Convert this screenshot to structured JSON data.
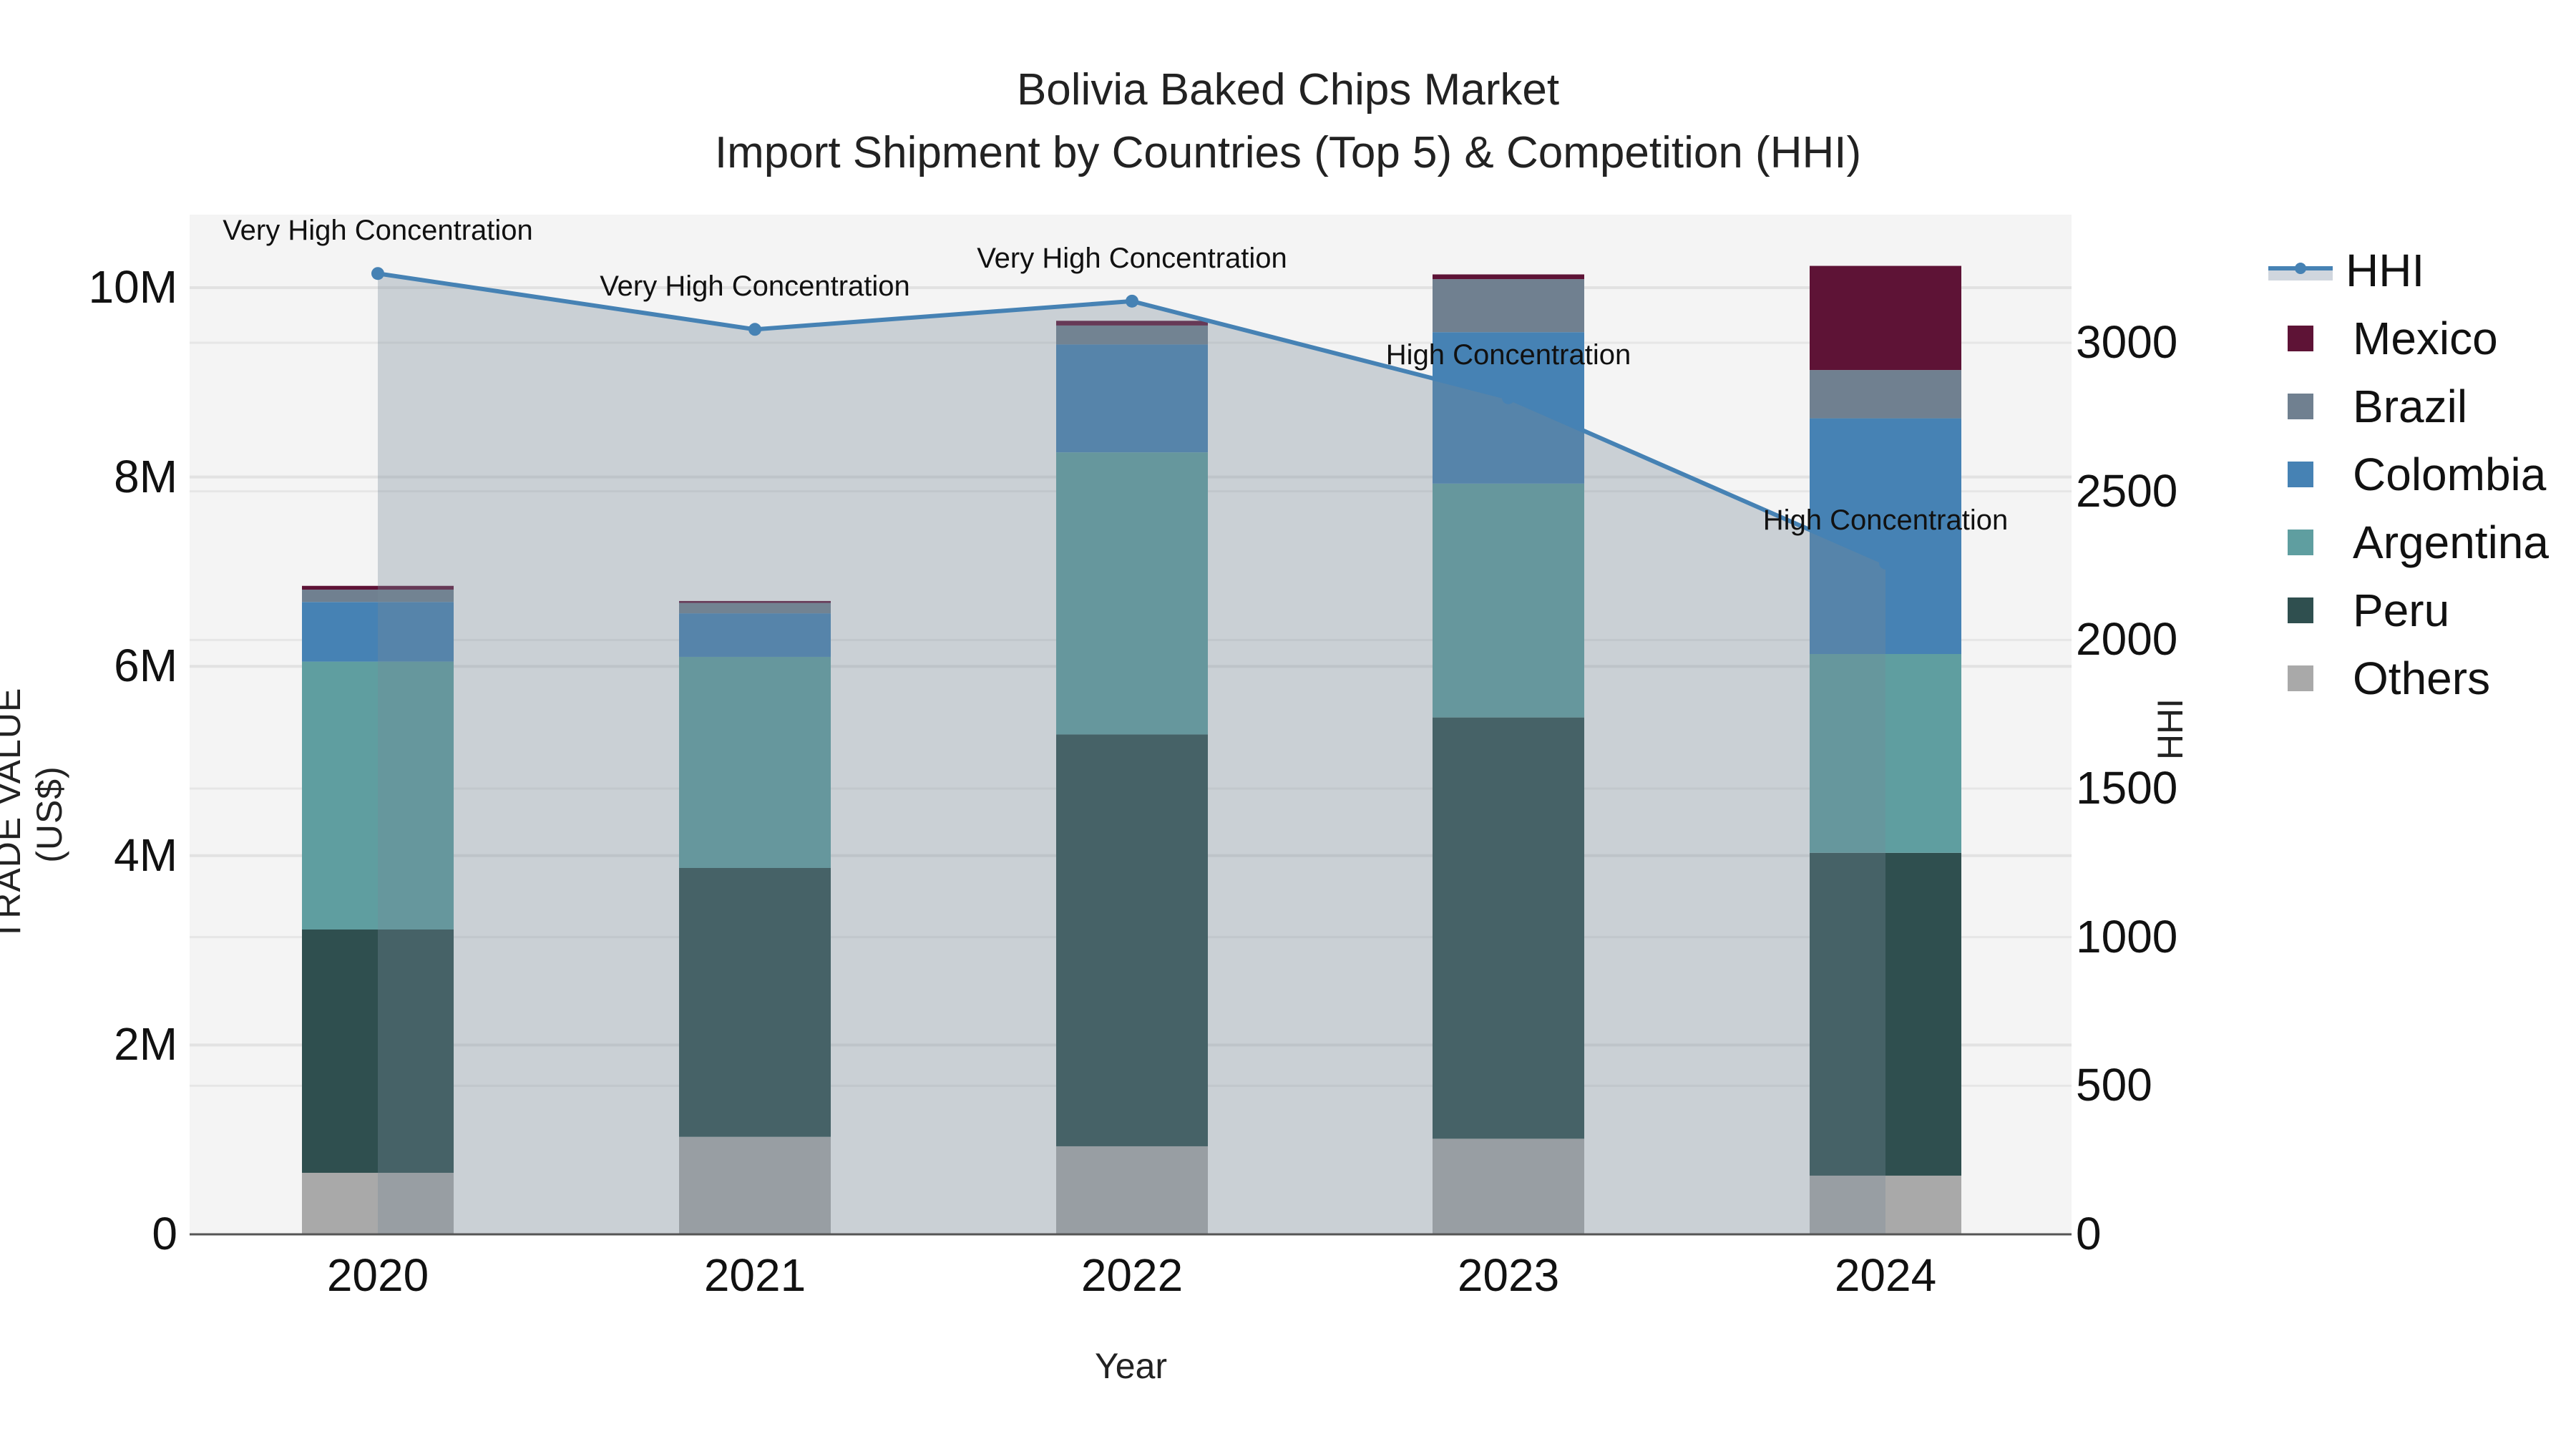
{
  "chart_data": {
    "type": "bar",
    "title": "Bolivia Baked Chips Market",
    "subtitle": "Import Shipment by Countries (Top 5) & Competition (HHI)",
    "xlabel": "Year",
    "ylabel": "TRADE VALUE (US$)",
    "y2label": "HHI",
    "categories": [
      "2020",
      "2021",
      "2022",
      "2023",
      "2024"
    ],
    "stacked": true,
    "ylim": [
      0,
      10800000
    ],
    "y2lim": [
      0,
      3400
    ],
    "yticks": [
      0,
      2000000,
      4000000,
      6000000,
      8000000,
      10000000
    ],
    "ytick_labels": [
      "0",
      "2M",
      "4M",
      "6M",
      "8M",
      "10M"
    ],
    "y2ticks": [
      0,
      500,
      1000,
      1500,
      2000,
      2500,
      3000
    ],
    "y2tick_labels": [
      "0",
      "500",
      "1000",
      "1500",
      "2000",
      "2500",
      "3000"
    ],
    "grid": true,
    "legend_position": "right",
    "series": [
      {
        "name": "Others",
        "color": "#a9a9a9",
        "values": [
          650000,
          1030000,
          930000,
          1010000,
          620000
        ]
      },
      {
        "name": "Peru",
        "color": "#2f4f4f",
        "values": [
          2570000,
          2840000,
          4350000,
          4450000,
          3410000
        ]
      },
      {
        "name": "Argentina",
        "color": "#5f9ea0",
        "values": [
          2830000,
          2230000,
          2980000,
          2470000,
          2100000
        ]
      },
      {
        "name": "Colombia",
        "color": "#4682b4",
        "values": [
          630000,
          460000,
          1140000,
          1600000,
          2490000
        ]
      },
      {
        "name": "Brazil",
        "color": "#708090",
        "values": [
          130000,
          110000,
          200000,
          560000,
          510000
        ]
      },
      {
        "name": "Mexico",
        "color": "#5e1336",
        "values": [
          40000,
          20000,
          50000,
          50000,
          1100000
        ]
      }
    ],
    "line_series": {
      "name": "HHI",
      "axis": "y2",
      "color": "#4682b4",
      "fill_color": "rgba(119,136,153,0.35)",
      "values": [
        3233,
        3045,
        3140,
        2815,
        2259
      ],
      "annotations": [
        "Very High Concentration",
        "Very High Concentration",
        "Very High Concentration",
        "High Concentration",
        "High Concentration"
      ]
    }
  },
  "legend": {
    "items": [
      {
        "label": "HHI",
        "type": "line",
        "color": "#4682b4"
      },
      {
        "label": "Mexico",
        "color": "#5e1336"
      },
      {
        "label": "Brazil",
        "color": "#708090"
      },
      {
        "label": "Colombia",
        "color": "#4682b4"
      },
      {
        "label": "Argentina",
        "color": "#5f9ea0"
      },
      {
        "label": "Peru",
        "color": "#2f4f4f"
      },
      {
        "label": "Others",
        "color": "#a9a9a9"
      }
    ]
  },
  "colors": {
    "plot_bg": "#f4f4f4",
    "grid": "#e2e2e2",
    "axis_line": "#555555"
  }
}
